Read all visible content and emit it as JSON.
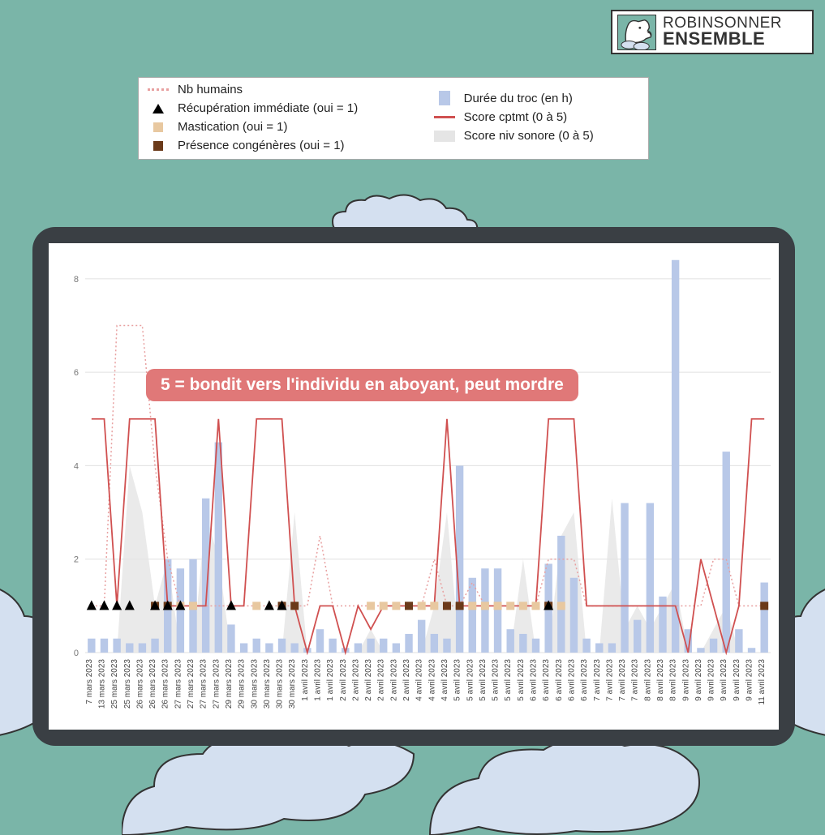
{
  "logo": {
    "top": "ROBINSONNER",
    "bottom": "ENSEMBLE"
  },
  "legend": {
    "nb_humains": "Nb humains",
    "recup": "Récupération immédiate (oui = 1)",
    "mastication": "Mastication (oui = 1)",
    "congeneres": "Présence congénères (oui = 1)",
    "duree": "Durée du troc (en h)",
    "score_cptmt": "Score cptmt (0 à 5)",
    "score_sonore": "Score niv sonore (0 à 5)"
  },
  "annotation": "5 = bondit vers l'individu en aboyant, peut mordre",
  "chart": {
    "type": "combo",
    "background_color": "#ffffff",
    "grid_color": "#e0e0e0",
    "ylim": [
      0,
      8.5
    ],
    "yticks": [
      0,
      2,
      4,
      6,
      8
    ],
    "ytick_fontsize": 11,
    "xlabel_fontsize": 10,
    "xlabel_rotation": -90,
    "colors": {
      "bars": "#b8c8e8",
      "score_line": "#d05050",
      "dotted_line": "#e8a0a0",
      "area": "#e5e5e5",
      "triangle": "#000000",
      "tan_square": "#e8c8a0",
      "brown_square": "#6b3a1a"
    },
    "x_labels": [
      "7 mars 2023",
      "13 mars 2023",
      "25 mars 2023",
      "25 mars 2023",
      "26 mars 2023",
      "26 mars 2023",
      "26 mars 2023",
      "27 mars 2023",
      "27 mars 2023",
      "27 mars 2023",
      "27 mars 2023",
      "29 mars 2023",
      "29 mars 2023",
      "30 mars 2023",
      "30 mars 2023",
      "30 mars 2023",
      "30 mars 2023",
      "1 avril 2023",
      "1 avril 2023",
      "1 avril 2023",
      "2 avril 2023",
      "2 avril 2023",
      "2 avril 2023",
      "2 avril 2023",
      "2 avril 2023",
      "2 avril 2023",
      "4 avril 2023",
      "4 avril 2023",
      "4 avril 2023",
      "5 avril 2023",
      "5 avril 2023",
      "5 avril 2023",
      "5 avril 2023",
      "5 avril 2023",
      "5 avril 2023",
      "6 avril 2023",
      "6 avril 2023",
      "6 avril 2023",
      "6 avril 2023",
      "6 avril 2023",
      "7 avril 2023",
      "7 avril 2023",
      "7 avril 2023",
      "7 avril 2023",
      "8 avril 2023",
      "8 avril 2023",
      "8 avril 2023",
      "9 avril 2023",
      "9 avril 2023",
      "9 avril 2023",
      "9 avril 2023",
      "9 avril 2023",
      "9 avril 2023",
      "11 avril 2023"
    ],
    "bars_duree": [
      0.3,
      0.3,
      0.3,
      0.2,
      0.2,
      0.3,
      2.0,
      1.8,
      2.0,
      3.3,
      4.5,
      0.6,
      0.2,
      0.3,
      0.2,
      0.3,
      0.2,
      0.1,
      0.5,
      0.3,
      0.1,
      0.2,
      0.3,
      0.3,
      0.2,
      0.4,
      0.7,
      0.4,
      0.3,
      4.0,
      1.6,
      1.8,
      1.8,
      0.5,
      0.4,
      0.3,
      1.9,
      2.5,
      1.6,
      0.3,
      0.2,
      0.2,
      3.2,
      0.7,
      3.2,
      1.2,
      8.4,
      0.5,
      0.1,
      0.3,
      4.3,
      0.5,
      0.1,
      1.5
    ],
    "score_cptmt": [
      5,
      5,
      1,
      5,
      5,
      5,
      1,
      1,
      1,
      1,
      5,
      1,
      1,
      5,
      5,
      5,
      1,
      0,
      1,
      1,
      0,
      1,
      0.5,
      1,
      1,
      1,
      1,
      1,
      5,
      1,
      1,
      1,
      1,
      1,
      1,
      1,
      5,
      5,
      5,
      1,
      1,
      1,
      1,
      1,
      1,
      1,
      1,
      0,
      2,
      1,
      0,
      1,
      5,
      5
    ],
    "nb_humains_dotted": [
      1,
      1,
      7,
      7,
      7,
      4,
      2,
      1,
      1,
      1,
      1,
      1,
      1,
      1,
      1,
      1,
      1,
      1,
      2.5,
      1,
      1,
      1,
      1,
      1,
      1,
      1,
      1,
      2,
      1,
      1,
      1.5,
      1,
      1,
      1,
      1,
      1,
      2,
      2,
      2,
      1,
      1,
      1,
      1,
      1,
      1,
      1,
      1,
      1,
      1,
      2,
      2,
      1,
      1,
      1
    ],
    "score_sonore_area": [
      0,
      0,
      0,
      4,
      3,
      1,
      2,
      0,
      0,
      3,
      2,
      0,
      0,
      0,
      0,
      0,
      3,
      0,
      0,
      0,
      0,
      0,
      0.5,
      0,
      0,
      0,
      0,
      1,
      3,
      0,
      0,
      0,
      0,
      0,
      2,
      0,
      0,
      2.5,
      3,
      0,
      0,
      3.3,
      0.5,
      1,
      0.5,
      1,
      1.5,
      0,
      0,
      0.5,
      1,
      0,
      0,
      0
    ],
    "triangles_x": [
      0,
      1,
      2,
      3,
      5,
      6,
      7,
      11,
      14,
      15,
      36
    ],
    "tan_squares_x": [
      6,
      7,
      8,
      13,
      22,
      23,
      24,
      25,
      26,
      27,
      28,
      30,
      31,
      32,
      33,
      34,
      35,
      36,
      37
    ],
    "brown_squares_x": [
      5,
      6,
      15,
      16,
      25,
      28,
      29,
      36,
      53
    ]
  }
}
